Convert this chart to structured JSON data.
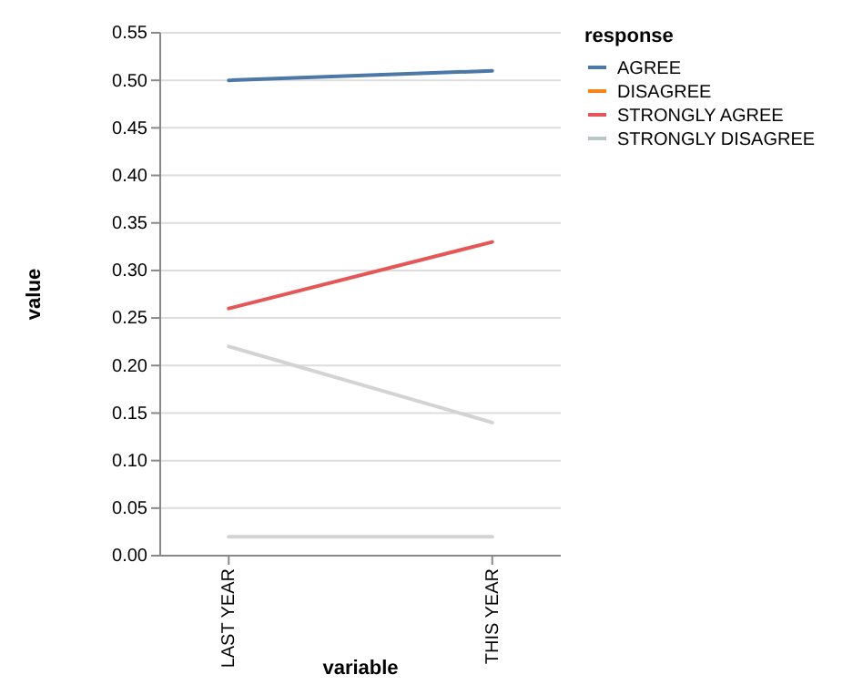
{
  "chart_data": {
    "type": "line",
    "xlabel": "variable",
    "ylabel": "value",
    "legend_title": "response",
    "categories": [
      "LAST YEAR",
      "THIS YEAR"
    ],
    "series": [
      {
        "name": "AGREE",
        "color": "#4c78a8",
        "values": [
          0.5,
          0.51
        ]
      },
      {
        "name": "DISAGREE",
        "color": "#f58518",
        "values": [
          null,
          null
        ]
      },
      {
        "name": "STRONGLY AGREE",
        "color": "#e45756",
        "values": [
          0.26,
          0.33
        ]
      },
      {
        "name": "STRONGLY DISAGREE",
        "color": "#b9c7c7",
        "values": [
          null,
          null
        ]
      },
      {
        "color": "#d3d3d3",
        "values": [
          0.22,
          0.14
        ]
      },
      {
        "color": "#d3d3d3",
        "values": [
          0.02,
          0.02
        ]
      }
    ],
    "ylim": [
      0,
      0.55
    ],
    "yticks": [
      {
        "value": 0,
        "label": "0.00"
      },
      {
        "value": 0.05,
        "label": "0.05"
      },
      {
        "value": 0.1,
        "label": "0.10"
      },
      {
        "value": 0.15,
        "label": "0.15"
      },
      {
        "value": 0.2,
        "label": "0.20"
      },
      {
        "value": 0.25,
        "label": "0.25"
      },
      {
        "value": 0.3,
        "label": "0.30"
      },
      {
        "value": 0.35,
        "label": "0.35"
      },
      {
        "value": 0.4,
        "label": "0.40"
      },
      {
        "value": 0.45,
        "label": "0.45"
      },
      {
        "value": 0.5,
        "label": "0.50"
      },
      {
        "value": 0.55,
        "label": "0.55"
      }
    ],
    "grid": "y",
    "legend": "right",
    "line_style": "solid"
  }
}
